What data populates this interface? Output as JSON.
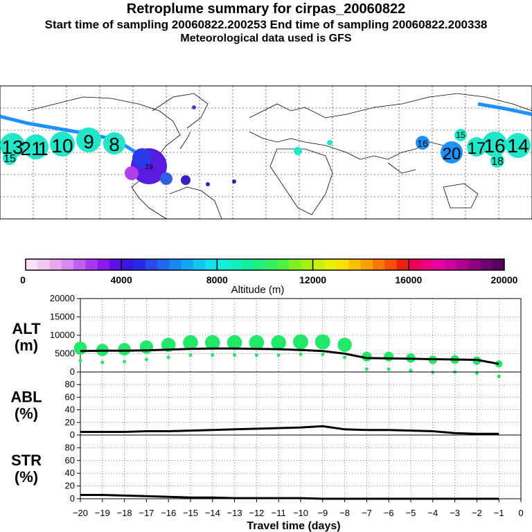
{
  "header": {
    "title": "Retroplume summary for cirpas_20060822",
    "subtitle": "Start time of sampling 20060822.200253      End time of sampling 20060822.200338",
    "met": "Meteorological data used is GFS"
  },
  "colorbar": {
    "ticks": [
      "0",
      "4000",
      "8000",
      "12000",
      "16000",
      "20000"
    ],
    "title": "Altitude (m)"
  },
  "map": {
    "labels_west": [
      "13",
      "21",
      "1",
      "10",
      "9",
      "8"
    ],
    "labels_east": [
      "16",
      "20",
      "17",
      "16",
      "14"
    ],
    "labels_small": [
      "15",
      "18",
      "15",
      "19"
    ]
  },
  "chart_data": [
    {
      "type": "line",
      "panel": "ALT",
      "ylabel_top": "ALT",
      "ylabel_unit": "(m)",
      "ylim": [
        0,
        20000
      ],
      "yticks": [
        "20000",
        "15000",
        "10000",
        "5000",
        "0"
      ],
      "x": [
        -20,
        -19,
        -18,
        -17,
        -16,
        -15,
        -14,
        -13,
        -12,
        -11,
        -10,
        -9,
        -8,
        -7,
        -6,
        -5,
        -4,
        -3,
        -2,
        -1
      ],
      "mean_altitude": [
        5700,
        5800,
        5800,
        5900,
        6100,
        6300,
        6400,
        6400,
        6300,
        6200,
        6000,
        5700,
        5000,
        3800,
        3700,
        3600,
        3500,
        3400,
        3300,
        2200
      ],
      "plume_circles": [
        6500,
        6000,
        6200,
        6800,
        7400,
        8000,
        8000,
        8000,
        8000,
        8000,
        8200,
        8200,
        7400,
        4200,
        4200,
        3800,
        3300,
        3400,
        3100,
        2200
      ]
    },
    {
      "type": "line",
      "panel": "ABL",
      "ylabel_top": "ABL",
      "ylabel_unit": "(%)",
      "ylim": [
        0,
        100
      ],
      "yticks": [
        "80",
        "60",
        "40",
        "20",
        "0"
      ],
      "x": [
        -20,
        -19,
        -18,
        -17,
        -16,
        -15,
        -14,
        -13,
        -12,
        -11,
        -10,
        -9,
        -8,
        -7,
        -6,
        -5,
        -4,
        -3,
        -2,
        -1
      ],
      "values": [
        5,
        5,
        5,
        6,
        6,
        7,
        8,
        9,
        10,
        11,
        12,
        14,
        9,
        8,
        8,
        7,
        6,
        3,
        2,
        2
      ]
    },
    {
      "type": "line",
      "panel": "STR",
      "ylabel_top": "STR",
      "ylabel_unit": "(%)",
      "ylim": [
        0,
        100
      ],
      "yticks": [
        "80",
        "60",
        "40",
        "20",
        "0"
      ],
      "x": [
        -20,
        -19,
        -18,
        -17,
        -16,
        -15,
        -14,
        -13,
        -12,
        -11,
        -10,
        -9,
        -8,
        -7,
        -6,
        -5,
        -4,
        -3,
        -2,
        -1
      ],
      "values": [
        6,
        6,
        5,
        4,
        3,
        2,
        2,
        1,
        1,
        1,
        1,
        0,
        0,
        0,
        0,
        0,
        0,
        0,
        0,
        0
      ],
      "xlabel": "Travel time (days)",
      "xticks": [
        "−20",
        "−19",
        "−18",
        "−17",
        "−16",
        "−15",
        "−14",
        "−13",
        "−12",
        "−11",
        "−10",
        "−9",
        "−8",
        "−7",
        "−6",
        "−5",
        "−4",
        "−3",
        "−2",
        "−1",
        "0"
      ]
    }
  ]
}
